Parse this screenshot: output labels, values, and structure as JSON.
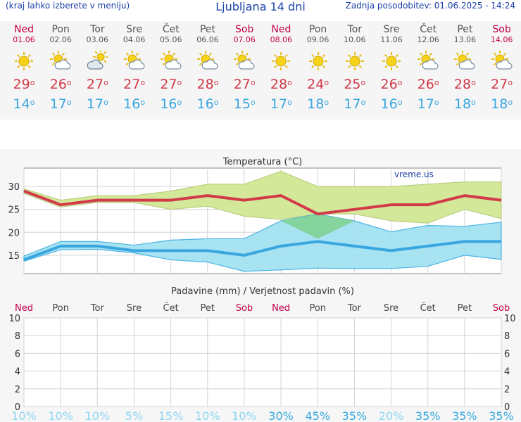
{
  "header": {
    "location_hint": "(kraj lahko izberete v meniju)",
    "title": "Ljubljana 14 dni",
    "updated": "Zadnja posodobitev: 01.06.2025 - 14:24"
  },
  "colors": {
    "weekend": "#c4004a",
    "weekday": "#555555",
    "max": "#d23a4a",
    "min": "#3aa6e0"
  },
  "days": [
    {
      "name": "Ned",
      "date": "01.06",
      "weekend": true,
      "icon": "sun-icon",
      "max": "29",
      "min": "14"
    },
    {
      "name": "Pon",
      "date": "02.06",
      "weekend": false,
      "icon": "sun-cloud-icon",
      "max": "26",
      "min": "17"
    },
    {
      "name": "Tor",
      "date": "03.06",
      "weekend": false,
      "icon": "cloud-sun-icon",
      "max": "27",
      "min": "17"
    },
    {
      "name": "Sre",
      "date": "04.06",
      "weekend": false,
      "icon": "sun-cloud-icon",
      "max": "27",
      "min": "16"
    },
    {
      "name": "Čet",
      "date": "05.06",
      "weekend": false,
      "icon": "sun-cloud-icon",
      "max": "27",
      "min": "16"
    },
    {
      "name": "Pet",
      "date": "06.06",
      "weekend": false,
      "icon": "sun-cloud-icon",
      "max": "28",
      "min": "16"
    },
    {
      "name": "Sob",
      "date": "07.06",
      "weekend": true,
      "icon": "sun-cloud-icon",
      "max": "27",
      "min": "15"
    },
    {
      "name": "Ned",
      "date": "08.06",
      "weekend": true,
      "icon": "sun-icon",
      "max": "28",
      "min": "17"
    },
    {
      "name": "Pon",
      "date": "09.06",
      "weekend": false,
      "icon": "sun-icon",
      "max": "24",
      "min": "18"
    },
    {
      "name": "Tor",
      "date": "10.06",
      "weekend": false,
      "icon": "sun-icon",
      "max": "25",
      "min": "17"
    },
    {
      "name": "Sre",
      "date": "11.06",
      "weekend": false,
      "icon": "sun-icon",
      "max": "26",
      "min": "16"
    },
    {
      "name": "Čet",
      "date": "12.06",
      "weekend": false,
      "icon": "sun-cloud-icon",
      "max": "26",
      "min": "17"
    },
    {
      "name": "Pet",
      "date": "13.06",
      "weekend": false,
      "icon": "sun-cloud-icon",
      "max": "28",
      "min": "18"
    },
    {
      "name": "Sob",
      "date": "14.06",
      "weekend": true,
      "icon": "sun-cloud-icon",
      "max": "27",
      "min": "18"
    }
  ],
  "chart_data": [
    {
      "type": "line",
      "title": "Temperatura (°C)",
      "watermark": "vreme.us",
      "ylim": [
        11,
        34
      ],
      "yticks": [
        15,
        20,
        25,
        30
      ],
      "grid": true,
      "series": [
        {
          "name": "max",
          "color": "#d23a4a",
          "values": [
            29,
            26,
            27,
            27,
            27,
            28,
            27,
            28,
            24,
            25,
            26,
            26,
            28,
            27
          ]
        },
        {
          "name": "min",
          "color": "#3aa6e0",
          "values": [
            14,
            17,
            17,
            16,
            16,
            16,
            15,
            17,
            18,
            17,
            16,
            17,
            18,
            18
          ]
        }
      ],
      "bands": [
        {
          "name": "max-range",
          "color": "#d3e898",
          "upper": [
            29.5,
            27,
            28,
            28,
            29,
            30.5,
            30.5,
            33.3,
            30,
            30,
            30,
            30.5,
            31,
            31
          ],
          "lower": [
            28.5,
            25.5,
            26.5,
            26.5,
            25,
            25.7,
            23.5,
            22.8,
            24,
            24,
            22.5,
            22,
            25,
            23
          ]
        },
        {
          "name": "min-range",
          "color": "#9ee0f0",
          "upper": [
            14.8,
            18,
            18,
            17.2,
            18.3,
            18.6,
            18.6,
            22.5,
            24,
            22.5,
            20.1,
            21.5,
            21.3,
            22.2
          ],
          "lower": [
            13.7,
            16.2,
            16.3,
            15.5,
            14,
            13.5,
            11.5,
            11.8,
            12.2,
            12.1,
            12.1,
            12.6,
            15,
            14.1
          ]
        }
      ]
    },
    {
      "type": "bar",
      "title": "Padavine (mm) / Verjetnost padavin (%)",
      "ylim": [
        0,
        10
      ],
      "yticks": [
        0,
        2,
        4,
        6,
        8,
        10
      ],
      "grid": true,
      "categories": [
        "Ned",
        "Pon",
        "Tor",
        "Sre",
        "Čet",
        "Pet",
        "Sob",
        "Ned",
        "Pon",
        "Tor",
        "Sre",
        "Čet",
        "Pet",
        "Sob"
      ],
      "weekend": [
        true,
        false,
        false,
        false,
        false,
        false,
        true,
        true,
        false,
        false,
        false,
        false,
        false,
        true
      ],
      "values": [
        0,
        0,
        0,
        0,
        0,
        0,
        0,
        0,
        0,
        0,
        0,
        0,
        0,
        0
      ],
      "probability": [
        "10%",
        "10%",
        "10%",
        "5%",
        "15%",
        "10%",
        "10%",
        "30%",
        "45%",
        "35%",
        "20%",
        "35%",
        "35%",
        "35%"
      ],
      "probability_colors": [
        "#8fd6f3",
        "#8fd6f3",
        "#8fd6f3",
        "#8fd6f3",
        "#8fd6f3",
        "#8fd6f3",
        "#8fd6f3",
        "#35aadf",
        "#35aadf",
        "#35aadf",
        "#8fd6f3",
        "#35aadf",
        "#35aadf",
        "#35aadf"
      ]
    }
  ]
}
